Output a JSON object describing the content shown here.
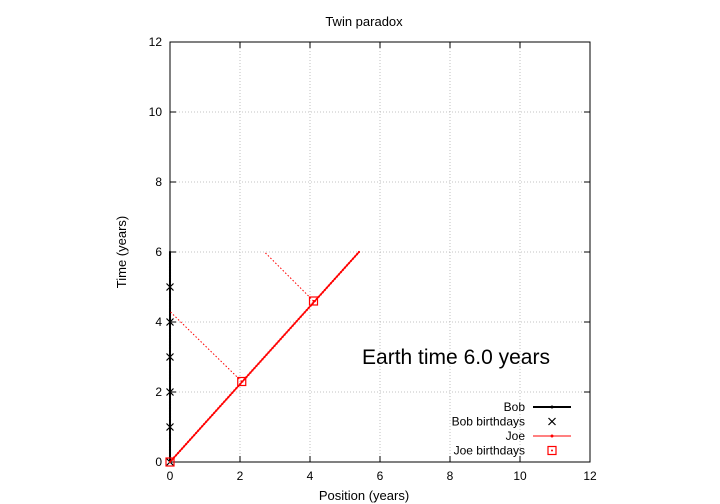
{
  "chart_data": {
    "type": "line",
    "title": "Twin paradox",
    "xlabel": "Position (years)",
    "ylabel": "Time (years)",
    "xlim": [
      0,
      12
    ],
    "ylim": [
      0,
      12
    ],
    "xticks": [
      "0",
      "2",
      "4",
      "6",
      "8",
      "10",
      "12"
    ],
    "yticks": [
      "0",
      "2",
      "4",
      "6",
      "8",
      "10",
      "12"
    ],
    "grid": true,
    "annotation": "Earth time  6.0 years",
    "legend_position": "bottom-right",
    "series": [
      {
        "name": "Bob",
        "style": "solid-line-with-points",
        "color": "#000000",
        "x": [
          0,
          0
        ],
        "y": [
          0,
          6
        ]
      },
      {
        "name": "Bob birthdays",
        "style": "x-markers",
        "color": "#000000",
        "x": [
          0,
          0,
          0,
          0,
          0,
          0
        ],
        "y": [
          0,
          1,
          2,
          3,
          4,
          5
        ]
      },
      {
        "name": "Joe",
        "style": "line-with-points",
        "color": "#ff0000",
        "x": [
          0,
          5.4
        ],
        "y": [
          0,
          6
        ]
      },
      {
        "name": "Joe birthdays",
        "style": "square-markers",
        "color": "#ff0000",
        "x": [
          0,
          2.05,
          4.1
        ],
        "y": [
          0,
          2.3,
          4.6
        ]
      },
      {
        "name": "",
        "style": "dotted-line",
        "color": "#ff0000",
        "x": [
          2.05,
          0
        ],
        "y": [
          2.3,
          4.3
        ]
      },
      {
        "name": "",
        "style": "dotted-line",
        "color": "#ff0000",
        "x": [
          4.1,
          2.7
        ],
        "y": [
          4.6,
          6.0
        ]
      }
    ]
  }
}
